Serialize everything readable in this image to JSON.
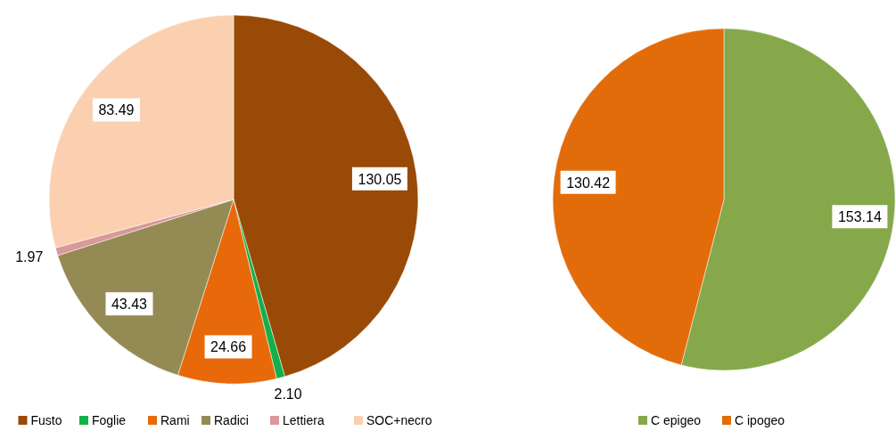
{
  "chart_data": [
    {
      "type": "pie",
      "categories": [
        "Fusto",
        "Foglie",
        "Rami",
        "Radici",
        "Lettiera",
        "SOC+necro"
      ],
      "values": [
        130.05,
        2.1,
        24.66,
        43.43,
        1.97,
        83.49
      ],
      "colors": [
        "#994a06",
        "#12b04a",
        "#e8690a",
        "#948a54",
        "#d9989a",
        "#fbd0b0"
      ],
      "value_labels": [
        "130.05",
        "2.10",
        "24.66",
        "43.43",
        "1.97",
        "83.49"
      ],
      "legend": "bottom"
    },
    {
      "type": "pie",
      "categories": [
        "C epigeo",
        "C ipogeo"
      ],
      "values": [
        153.14,
        130.42
      ],
      "colors": [
        "#86a84a",
        "#e36c0a"
      ],
      "value_labels": [
        "153.14",
        "130.42"
      ],
      "legend": "bottom"
    }
  ]
}
